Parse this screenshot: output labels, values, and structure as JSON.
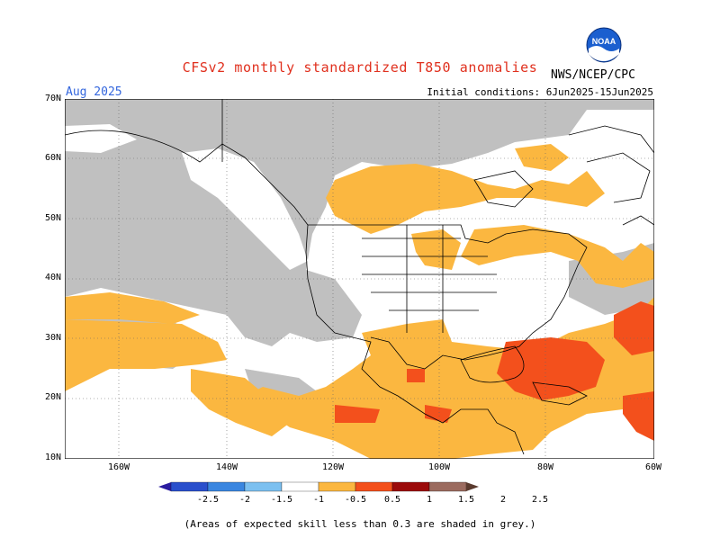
{
  "title": "CFSv2 monthly standardized T850 anomalies",
  "month_label": "Aug 2025",
  "initial_conditions": "Initial conditions: 6Jun2025-15Jun2025",
  "agency": "NWS/NCEP/CPC",
  "logo_text": "NOAA",
  "lat_labels": [
    "70N",
    "60N",
    "50N",
    "40N",
    "30N",
    "20N",
    "10N"
  ],
  "lon_labels": [
    "160W",
    "140W",
    "120W",
    "100W",
    "80W",
    "60W"
  ],
  "colorbar": {
    "labels": [
      "-2.5",
      "-2",
      "-1.5",
      "-1",
      "-0.5",
      "0.5",
      "1",
      "1.5",
      "2",
      "2.5"
    ],
    "colors": [
      "#2a1ca0",
      "#2a4fcc",
      "#3a86e0",
      "#7cc0f0",
      "#ffffff",
      "#fbb740",
      "#f3501c",
      "#9b0b0b",
      "#9b6b5f",
      "#5a3a2e"
    ]
  },
  "footnote": "(Areas of expected skill less than 0.3 are shaded in grey.)",
  "colors": {
    "skill_grey": "#c0c0c0",
    "anom_0_5": "#fbb740",
    "anom_1": "#f3501c",
    "title_red": "#e0301e",
    "month_blue": "#3366dd"
  }
}
